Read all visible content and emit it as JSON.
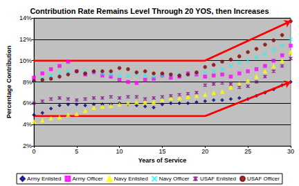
{
  "chart_data": {
    "type": "scatter",
    "title": "Contribution Rate Remains Level Through 20 YOS, then Increases",
    "x_label": "Years of Service",
    "y_label": "Percentage Contribution",
    "x": [
      0,
      1,
      2,
      3,
      4,
      5,
      6,
      7,
      8,
      9,
      10,
      11,
      12,
      13,
      14,
      15,
      16,
      17,
      18,
      19,
      20,
      21,
      22,
      23,
      24,
      25,
      26,
      27,
      28,
      29,
      30
    ],
    "series": [
      {
        "name": "Army Enlisted",
        "color": "#000080",
        "marker": "diamond",
        "values": [
          4.9,
          5.1,
          5.5,
          5.8,
          5.9,
          5.9,
          5.8,
          5.9,
          5.9,
          5.9,
          6.0,
          5.9,
          5.8,
          5.7,
          5.6,
          5.9,
          6.0,
          6.0,
          6.0,
          6.1,
          6.2,
          6.3,
          6.3,
          6.4,
          6.5,
          6.4,
          6.7,
          7.0,
          7.3,
          7.7,
          8.0
        ]
      },
      {
        "name": "Army Officer",
        "color": "#ff00ff",
        "marker": "square",
        "values": [
          8.4,
          8.8,
          9.2,
          9.5,
          9.9,
          9.0,
          8.7,
          8.9,
          8.6,
          8.5,
          8.2,
          8.0,
          7.9,
          8.2,
          8.3,
          8.6,
          8.4,
          8.5,
          8.8,
          8.7,
          8.5,
          8.6,
          8.7,
          8.5,
          8.8,
          9.0,
          9.2,
          9.5,
          10.0,
          10.5,
          11.4
        ]
      },
      {
        "name": "Navy Enlisted",
        "color": "#ffff00",
        "marker": "triangle",
        "values": [
          4.3,
          4.4,
          4.6,
          4.7,
          4.9,
          5.0,
          5.3,
          5.6,
          5.7,
          5.8,
          5.9,
          6.0,
          6.1,
          6.1,
          6.1,
          6.3,
          6.5,
          6.5,
          6.6,
          6.7,
          6.8,
          7.0,
          7.1,
          7.5,
          7.8,
          8.1,
          8.5,
          9.0,
          9.5,
          10.0,
          10.8
        ]
      },
      {
        "name": "Navy Officer",
        "color": "#00ffff",
        "marker": "x",
        "values": [
          8.0,
          8.3,
          8.6,
          8.8,
          9.0,
          9.0,
          8.9,
          8.9,
          8.8,
          8.7,
          8.6,
          8.6,
          8.7,
          8.6,
          8.5,
          8.6,
          8.7,
          8.7,
          8.7,
          8.8,
          8.9,
          9.0,
          9.2,
          9.5,
          9.8,
          10.0,
          10.3,
          10.6,
          11.0,
          11.4,
          12.0
        ]
      },
      {
        "name": "USAF Enlisted",
        "color": "#800080",
        "marker": "star",
        "values": [
          6.0,
          6.2,
          6.4,
          6.5,
          6.4,
          6.3,
          6.4,
          6.5,
          6.5,
          6.6,
          6.5,
          6.6,
          6.6,
          6.4,
          6.5,
          6.6,
          6.7,
          6.8,
          6.9,
          7.0,
          7.7,
          7.8,
          7.9,
          7.8,
          7.5,
          7.6,
          8.0,
          8.5,
          9.0,
          9.5,
          10.2
        ]
      },
      {
        "name": "USAF Officer",
        "color": "#800000",
        "marker": "circle",
        "values": [
          8.1,
          8.2,
          8.3,
          8.5,
          8.7,
          9.0,
          8.8,
          9.0,
          9.0,
          9.0,
          9.3,
          9.2,
          8.9,
          9.0,
          8.8,
          8.8,
          8.7,
          8.6,
          8.7,
          8.9,
          9.4,
          9.6,
          9.9,
          10.1,
          10.4,
          10.8,
          11.1,
          11.5,
          11.9,
          12.4,
          13.7
        ]
      }
    ],
    "trend_lines": [
      {
        "color": "#ff0000",
        "x": [
          0,
          20,
          30
        ],
        "values": [
          10,
          10,
          13.7
        ]
      },
      {
        "color": "#ff0000",
        "x": [
          0,
          20,
          30
        ],
        "values": [
          4.8,
          4.8,
          8
        ]
      }
    ],
    "xlim": [
      0,
      30
    ],
    "xticks": [
      0,
      5,
      10,
      15,
      20,
      25,
      30
    ],
    "ylim": [
      2,
      14
    ],
    "yticks": [
      {
        "value": 2,
        "label": "2%"
      },
      {
        "value": 4,
        "label": "4%"
      },
      {
        "value": 6,
        "label": "6%"
      },
      {
        "value": 8,
        "label": "8%"
      },
      {
        "value": 10,
        "label": "10%"
      },
      {
        "value": 12,
        "label": "12%"
      },
      {
        "value": 14,
        "label": "14%"
      }
    ],
    "grid": true,
    "legend": "bottom"
  }
}
